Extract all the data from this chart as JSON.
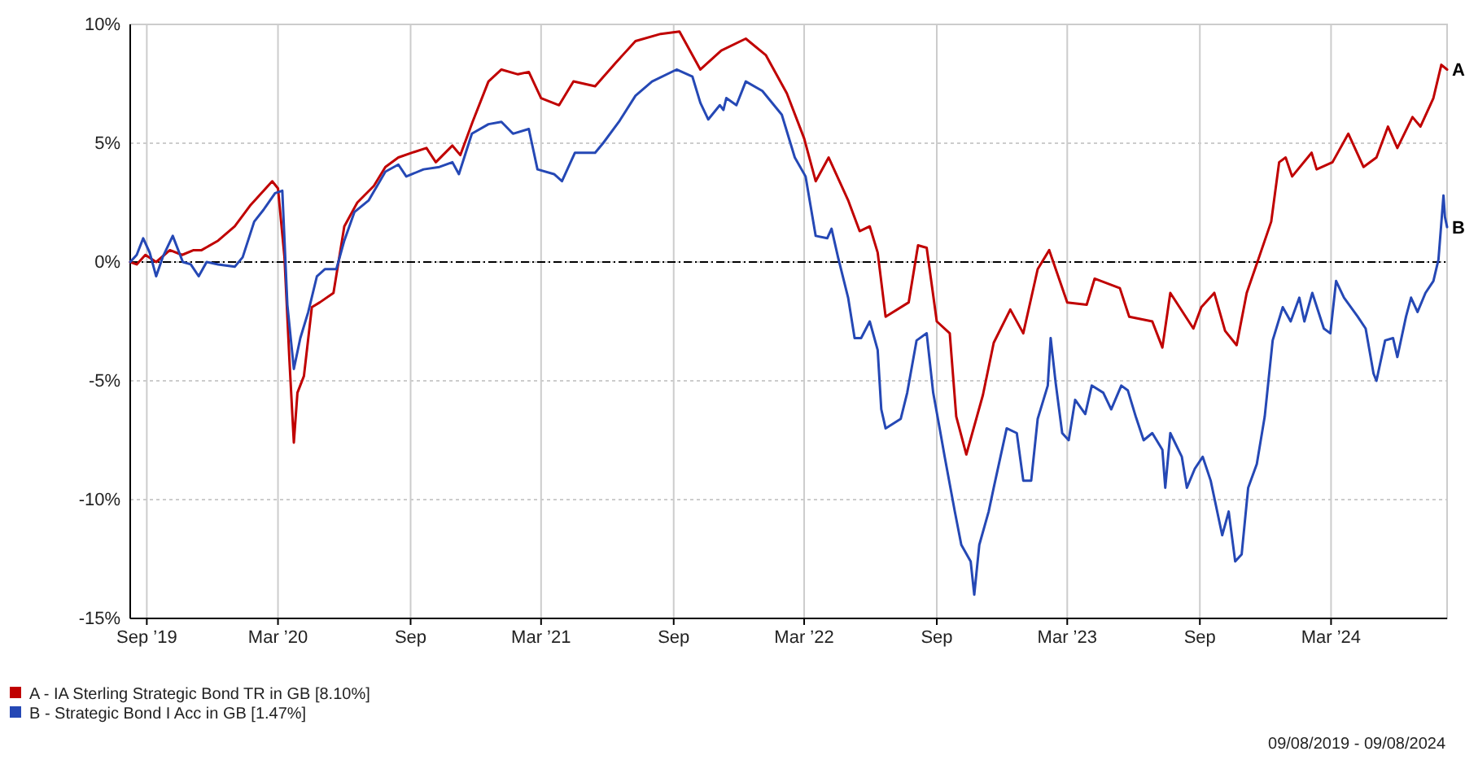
{
  "chart_data": {
    "type": "line",
    "xlim": [
      "2019-08-09",
      "2024-08-09"
    ],
    "xticks": [
      {
        "value": "2019-09-01",
        "label": "Sep ’19"
      },
      {
        "value": "2020-03-01",
        "label": "Mar ’20"
      },
      {
        "value": "2020-09-01",
        "label": "Sep"
      },
      {
        "value": "2021-03-01",
        "label": "Mar ’21"
      },
      {
        "value": "2021-09-01",
        "label": "Sep"
      },
      {
        "value": "2022-03-01",
        "label": "Mar ’22"
      },
      {
        "value": "2022-09-01",
        "label": "Sep"
      },
      {
        "value": "2023-03-01",
        "label": "Mar ’23"
      },
      {
        "value": "2023-09-01",
        "label": "Sep"
      },
      {
        "value": "2024-03-01",
        "label": "Mar ’24"
      }
    ],
    "ylim": [
      -15,
      10
    ],
    "yticks": [
      {
        "value": -15,
        "label": "-15%"
      },
      {
        "value": -10,
        "label": "-10%"
      },
      {
        "value": -5,
        "label": "-5%"
      },
      {
        "value": 0,
        "label": "0%"
      },
      {
        "value": 5,
        "label": "5%"
      },
      {
        "value": 10,
        "label": "10%"
      }
    ],
    "grid": true,
    "legend": "bottom left",
    "marker": "none",
    "line_style": "solid",
    "ref_lines": [
      {
        "axis": "y",
        "value": 0,
        "color": "#000000",
        "line_style": "dashed"
      }
    ],
    "series": [
      {
        "name": "A - IA Sterling Strategic Bond TR in GB [8.10%]",
        "color": "#c00000",
        "x": [
          "2019-08-09",
          "2019-08-18",
          "2019-08-30",
          "2019-09-14",
          "2019-10-03",
          "2019-10-20",
          "2019-11-05",
          "2019-11-16",
          "2019-12-09",
          "2020-01-01",
          "2020-01-23",
          "2020-02-22",
          "2020-03-01",
          "2020-03-10",
          "2020-03-17",
          "2020-03-23",
          "2020-03-28",
          "2020-04-06",
          "2020-04-17",
          "2020-04-28",
          "2020-05-17",
          "2020-06-01",
          "2020-06-19",
          "2020-07-12",
          "2020-07-28",
          "2020-08-15",
          "2020-09-03",
          "2020-09-23",
          "2020-10-06",
          "2020-10-29",
          "2020-11-09",
          "2020-11-26",
          "2020-12-18",
          "2021-01-05",
          "2021-01-28",
          "2021-02-12",
          "2021-03-01",
          "2021-03-26",
          "2021-04-15",
          "2021-05-15",
          "2021-06-13",
          "2021-07-10",
          "2021-08-14",
          "2021-09-09",
          "2021-10-08",
          "2021-11-06",
          "2021-12-10",
          "2022-01-07",
          "2022-02-05",
          "2022-03-01",
          "2022-03-17",
          "2022-04-04",
          "2022-05-01",
          "2022-05-17",
          "2022-05-31",
          "2022-06-11",
          "2022-06-22",
          "2022-07-24",
          "2022-08-06",
          "2022-08-18",
          "2022-09-01",
          "2022-09-19",
          "2022-09-28",
          "2022-10-12",
          "2022-11-04",
          "2022-11-19",
          "2022-12-12",
          "2022-12-30",
          "2023-01-19",
          "2023-02-04",
          "2023-03-01",
          "2023-03-28",
          "2023-04-08",
          "2023-05-13",
          "2023-05-26",
          "2023-06-27",
          "2023-07-11",
          "2023-07-22",
          "2023-08-23",
          "2023-09-03",
          "2023-09-21",
          "2023-10-06",
          "2023-10-22",
          "2023-11-05",
          "2023-11-21",
          "2023-12-09",
          "2023-12-20",
          "2023-12-29",
          "2024-01-07",
          "2024-02-03",
          "2024-02-10",
          "2024-03-03",
          "2024-03-25",
          "2024-04-15",
          "2024-05-03",
          "2024-05-19",
          "2024-06-01",
          "2024-06-22",
          "2024-07-03",
          "2024-07-21",
          "2024-08-01",
          "2024-08-09"
        ],
        "values": [
          0,
          -0.1,
          0.3,
          0,
          0.5,
          0.3,
          0.5,
          0.5,
          0.9,
          1.5,
          2.4,
          3.4,
          3.1,
          0.2,
          -4.2,
          -7.6,
          -5.5,
          -4.8,
          -1.9,
          -1.7,
          -1.3,
          1.5,
          2.5,
          3.2,
          4.0,
          4.4,
          4.6,
          4.8,
          4.2,
          4.9,
          4.5,
          5.9,
          7.6,
          8.1,
          7.9,
          8.0,
          6.9,
          6.6,
          7.6,
          7.4,
          8.4,
          9.3,
          9.6,
          9.7,
          8.1,
          8.9,
          9.4,
          8.7,
          7.1,
          5.2,
          3.4,
          4.4,
          2.6,
          1.3,
          1.5,
          0.4,
          -2.3,
          -1.7,
          0.7,
          0.6,
          -2.5,
          -3.0,
          -6.5,
          -8.1,
          -5.6,
          -3.4,
          -2.0,
          -3.0,
          -0.3,
          0.5,
          -1.7,
          -1.8,
          -0.7,
          -1.1,
          -2.3,
          -2.5,
          -3.6,
          -1.3,
          -2.8,
          -1.9,
          -1.3,
          -2.9,
          -3.5,
          -1.3,
          0.1,
          1.7,
          4.2,
          4.4,
          3.6,
          4.6,
          3.9,
          4.2,
          5.4,
          4.0,
          4.4,
          5.7,
          4.8,
          6.1,
          5.7,
          6.9,
          8.3,
          8.1
        ]
      },
      {
        "name": "B - Strategic Bond I Acc in GB [1.47%]",
        "color": "#2548b5",
        "x": [
          "2019-08-09",
          "2019-08-18",
          "2019-08-27",
          "2019-09-05",
          "2019-09-14",
          "2019-09-23",
          "2019-10-07",
          "2019-10-21",
          "2019-11-01",
          "2019-11-12",
          "2019-11-23",
          "2019-12-09",
          "2020-01-01",
          "2020-01-12",
          "2020-01-28",
          "2020-02-10",
          "2020-02-26",
          "2020-03-07",
          "2020-03-14",
          "2020-03-23",
          "2020-04-01",
          "2020-04-12",
          "2020-04-24",
          "2020-05-05",
          "2020-05-21",
          "2020-06-01",
          "2020-06-15",
          "2020-07-05",
          "2020-07-28",
          "2020-08-15",
          "2020-08-26",
          "2020-09-19",
          "2020-10-11",
          "2020-10-29",
          "2020-11-07",
          "2020-11-25",
          "2020-12-18",
          "2021-01-05",
          "2021-01-21",
          "2021-02-12",
          "2021-02-24",
          "2021-03-19",
          "2021-03-30",
          "2021-04-17",
          "2021-05-15",
          "2021-05-26",
          "2021-06-17",
          "2021-07-10",
          "2021-08-02",
          "2021-09-05",
          "2021-09-27",
          "2021-10-08",
          "2021-10-19",
          "2021-11-04",
          "2021-11-09",
          "2021-11-13",
          "2021-11-27",
          "2021-12-10",
          "2022-01-02",
          "2022-01-29",
          "2022-02-16",
          "2022-03-03",
          "2022-03-17",
          "2022-04-02",
          "2022-04-08",
          "2022-04-17",
          "2022-05-01",
          "2022-05-10",
          "2022-05-19",
          "2022-05-31",
          "2022-06-11",
          "2022-06-16",
          "2022-06-22",
          "2022-07-13",
          "2022-07-22",
          "2022-08-04",
          "2022-08-18",
          "2022-08-27",
          "2022-09-05",
          "2022-09-12",
          "2022-09-26",
          "2022-10-05",
          "2022-10-18",
          "2022-10-23",
          "2022-10-30",
          "2022-11-12",
          "2022-11-19",
          "2022-12-07",
          "2022-12-21",
          "2022-12-30",
          "2023-01-10",
          "2023-01-19",
          "2023-02-02",
          "2023-02-06",
          "2023-02-13",
          "2023-02-22",
          "2023-03-03",
          "2023-03-12",
          "2023-03-26",
          "2023-04-04",
          "2023-04-20",
          "2023-05-01",
          "2023-05-15",
          "2023-05-24",
          "2023-06-04",
          "2023-06-15",
          "2023-06-27",
          "2023-07-11",
          "2023-07-15",
          "2023-07-22",
          "2023-08-07",
          "2023-08-14",
          "2023-08-25",
          "2023-09-05",
          "2023-09-16",
          "2023-10-02",
          "2023-10-11",
          "2023-10-20",
          "2023-10-29",
          "2023-11-07",
          "2023-11-19",
          "2023-11-30",
          "2023-12-11",
          "2023-12-25",
          "2024-01-05",
          "2024-01-17",
          "2024-01-24",
          "2024-02-04",
          "2024-02-20",
          "2024-02-29",
          "2024-03-08",
          "2024-03-19",
          "2024-04-07",
          "2024-04-18",
          "2024-04-29",
          "2024-05-03",
          "2024-05-15",
          "2024-05-26",
          "2024-06-01",
          "2024-06-13",
          "2024-06-20",
          "2024-06-29",
          "2024-07-10",
          "2024-07-21",
          "2024-07-28",
          "2024-08-04",
          "2024-08-06",
          "2024-08-09"
        ],
        "values": [
          0,
          0.3,
          1.0,
          0.4,
          -0.6,
          0.2,
          1.1,
          0,
          -0.1,
          -0.6,
          0,
          -0.1,
          -0.2,
          0.2,
          1.7,
          2.2,
          2.9,
          3.0,
          -1.8,
          -4.5,
          -3.2,
          -2.1,
          -0.6,
          -0.3,
          -0.3,
          0.9,
          2.1,
          2.6,
          3.8,
          4.1,
          3.6,
          3.9,
          4.0,
          4.2,
          3.7,
          5.4,
          5.8,
          5.9,
          5.4,
          5.6,
          3.9,
          3.7,
          3.4,
          4.6,
          4.6,
          5.0,
          5.9,
          7.0,
          7.6,
          8.1,
          7.8,
          6.7,
          6.0,
          6.6,
          6.4,
          6.9,
          6.6,
          7.6,
          7.2,
          6.2,
          4.4,
          3.6,
          1.1,
          1.0,
          1.4,
          0.2,
          -1.5,
          -3.2,
          -3.2,
          -2.5,
          -3.7,
          -6.2,
          -7.0,
          -6.6,
          -5.5,
          -3.3,
          -3.0,
          -5.5,
          -7.0,
          -8.2,
          -10.5,
          -11.9,
          -12.6,
          -14.0,
          -11.9,
          -10.5,
          -9.5,
          -7.0,
          -7.2,
          -9.2,
          -9.2,
          -6.6,
          -5.2,
          -3.2,
          -5.1,
          -7.2,
          -7.5,
          -5.8,
          -6.4,
          -5.2,
          -5.5,
          -6.2,
          -5.2,
          -5.4,
          -6.5,
          -7.5,
          -7.2,
          -7.9,
          -9.5,
          -7.2,
          -8.2,
          -9.5,
          -8.7,
          -8.2,
          -9.2,
          -11.5,
          -10.5,
          -12.6,
          -12.3,
          -9.5,
          -8.5,
          -6.5,
          -3.3,
          -1.9,
          -2.5,
          -1.5,
          -2.5,
          -1.3,
          -2.8,
          -3.0,
          -0.8,
          -1.5,
          -2.3,
          -2.8,
          -4.7,
          -5.0,
          -3.3,
          -3.2,
          -4.0,
          -2.3,
          -1.5,
          -2.1,
          -1.3,
          -0.8,
          0.1,
          2.8,
          1.9,
          1.47
        ]
      }
    ],
    "annotations": [
      {
        "text": "A",
        "x": "2024-08-09",
        "y": 8.1
      },
      {
        "text": "B",
        "x": "2024-08-09",
        "y": 1.47
      },
      "09/08/2019 - 09/08/2024"
    ]
  }
}
